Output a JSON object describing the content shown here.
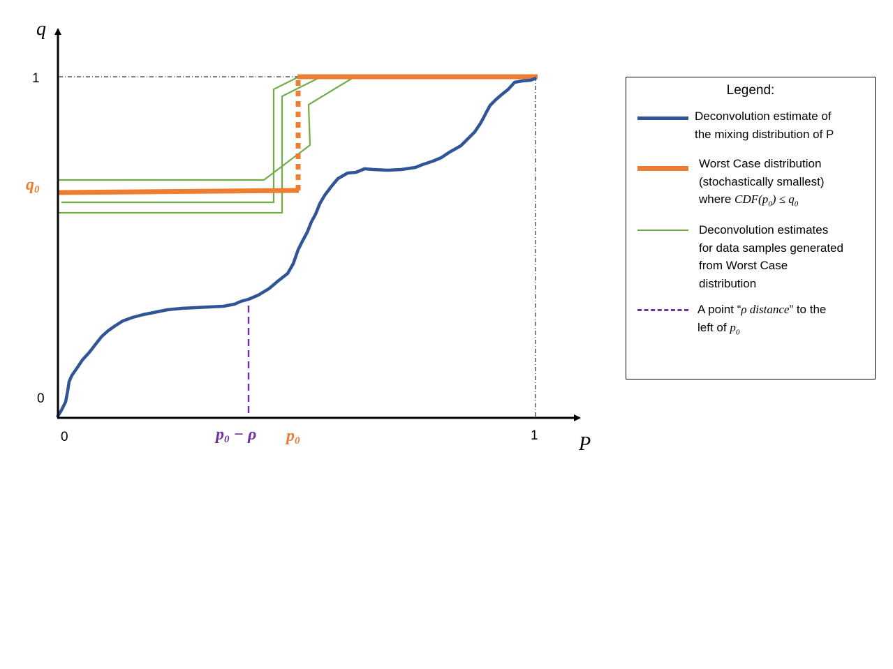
{
  "diagram": {
    "y_axis_label": "q",
    "x_axis_label": "P",
    "y_tick_top": "1",
    "y_tick_bottom": "0",
    "x_tick_left": "0",
    "x_tick_right": "1",
    "q0_label": "q",
    "q0_sub": "0",
    "p0_label": "p",
    "p0_sub": "0",
    "p0_minus_rho_label": "p",
    "p0_minus_rho_sub": "0",
    "p0_minus_rho_tail": " − ρ"
  },
  "legend": {
    "title": "Legend:",
    "items": [
      {
        "line1": "Deconvolution estimate of",
        "line2": "the mixing distribution of P"
      },
      {
        "line1": "Worst Case distribution",
        "line2": "(stochastically smallest)",
        "line3_pre": "where ",
        "line3_math": "CDF(p",
        "line3_sub": "0",
        "line3_post": ") ≤ q",
        "line3_sub2": "0"
      },
      {
        "line1": "Deconvolution estimates",
        "line2": "for data samples generated",
        "line3": "from Worst Case",
        "line4": "distribution"
      },
      {
        "line1_pre": "A point “",
        "line1_math": "ρ distance",
        "line1_post": "” to the",
        "line2_pre": "left of ",
        "line2_math": "p",
        "line2_sub": "0"
      }
    ]
  },
  "colors": {
    "blue": "#2f5597",
    "orange": "#ed7d31",
    "green": "#70ad47",
    "purple": "#7030a0",
    "axis": "#000000"
  }
}
